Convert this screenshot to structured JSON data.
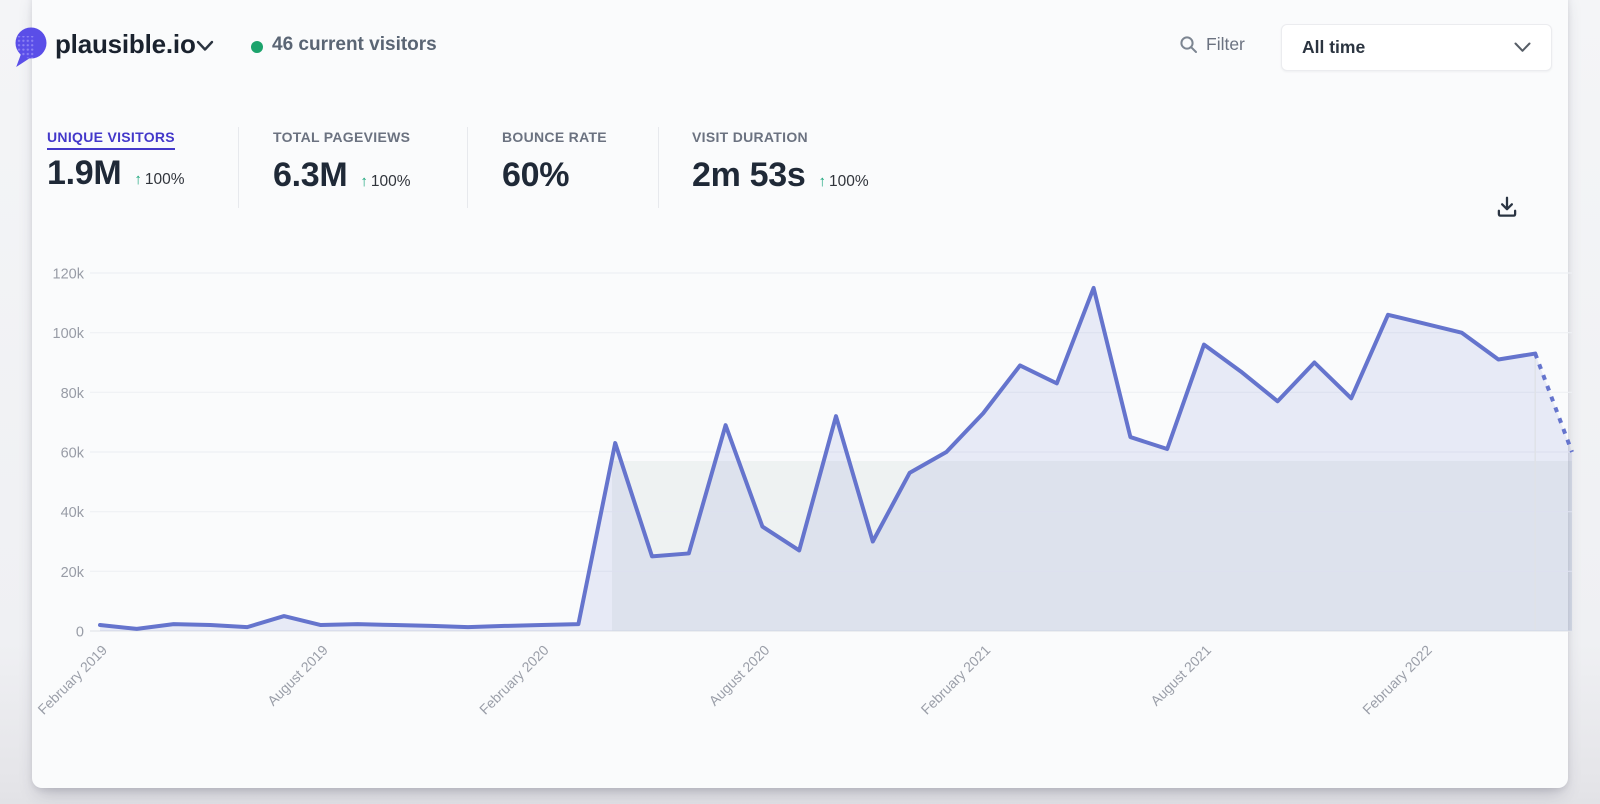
{
  "header": {
    "site_name": "plausible.io",
    "current_visitors": "46 current visitors",
    "filter_label": "Filter",
    "period_selector": "All time"
  },
  "stats": [
    {
      "label": "UNIQUE VISITORS",
      "value": "1.9M",
      "change_arrow": "↑",
      "change": "100%"
    },
    {
      "label": "TOTAL PAGEVIEWS",
      "value": "6.3M",
      "change_arrow": "↑",
      "change": "100%"
    },
    {
      "label": "BOUNCE RATE",
      "value": "60%"
    },
    {
      "label": "VISIT DURATION",
      "value": "2m 53s",
      "change_arrow": "↑",
      "change": "100%"
    }
  ],
  "colors": {
    "accent_indigo": "#4338ca",
    "line_indigo": "#6574cd",
    "live_green": "#1ca36c",
    "change_green": "#16a479"
  },
  "chart_data": {
    "type": "area",
    "title": "Monthly unique visitors",
    "months": [
      "February 2019",
      "March 2019",
      "April 2019",
      "May 2019",
      "June 2019",
      "July 2019",
      "August 2019",
      "September 2019",
      "October 2019",
      "November 2019",
      "December 2019",
      "January 2020",
      "February 2020",
      "March 2020",
      "April 2020",
      "May 2020",
      "June 2020",
      "July 2020",
      "August 2020",
      "September 2020",
      "October 2020",
      "November 2020",
      "December 2020",
      "January 2021",
      "February 2021",
      "March 2021",
      "April 2021",
      "May 2021",
      "June 2021",
      "July 2021",
      "August 2021",
      "September 2021",
      "October 2021",
      "November 2021",
      "December 2021",
      "January 2022",
      "February 2022",
      "March 2022",
      "April 2022",
      "May 2022",
      "June 2022"
    ],
    "values": [
      2000,
      700,
      2300,
      2000,
      1300,
      5000,
      2000,
      2300,
      2000,
      1700,
      1300,
      1700,
      2000,
      2300,
      63000,
      25000,
      26000,
      69000,
      35000,
      27000,
      72000,
      30000,
      53000,
      60000,
      73000,
      89000,
      83000,
      115000,
      65000,
      61000,
      96000,
      87000,
      77000,
      90000,
      78000,
      106000,
      103000,
      100000,
      91000,
      93000,
      60000
    ],
    "dashed_last_segment": true,
    "x_tick_indices": [
      0,
      6,
      12,
      18,
      24,
      30,
      36
    ],
    "x_tick_labels": [
      "February 2019",
      "August 2019",
      "February 2020",
      "August 2020",
      "February 2021",
      "August 2021",
      "February 2022"
    ],
    "y_ticks": [
      "0",
      "20k",
      "40k",
      "60k",
      "80k",
      "100k",
      "120k"
    ],
    "ylim": [
      0,
      120000
    ],
    "grid": "horizontal",
    "legend": "none",
    "line_color": "#6574cd",
    "fill_color": "rgba(101,116,205,0.12)"
  }
}
